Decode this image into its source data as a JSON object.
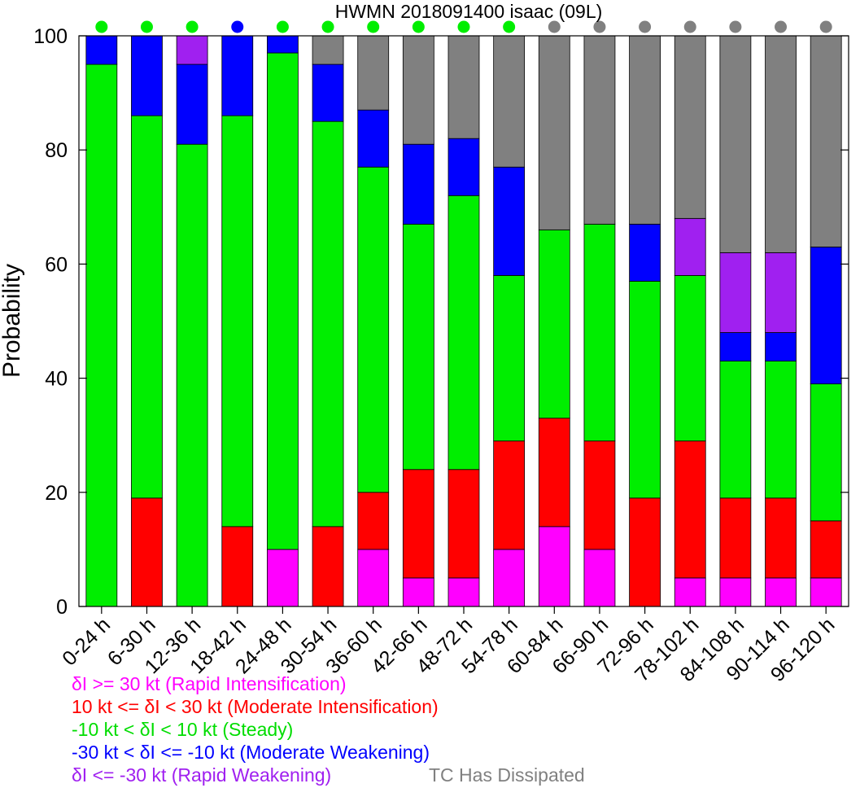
{
  "chart_data": {
    "type": "bar",
    "stacked": true,
    "title": "HWMN 2018091400 isaac (09L)",
    "xlabel": "",
    "ylabel": "Probability",
    "ylim": [
      0,
      100
    ],
    "yticks": [
      0,
      20,
      40,
      60,
      80,
      100
    ],
    "grid": false,
    "categories": [
      "0-24 h",
      "6-30 h",
      "12-36 h",
      "18-42 h",
      "24-48 h",
      "30-54 h",
      "36-60 h",
      "42-66 h",
      "48-72 h",
      "54-78 h",
      "60-84 h",
      "66-90 h",
      "72-96 h",
      "78-102 h",
      "84-108 h",
      "90-114 h",
      "96-120 h"
    ],
    "series": [
      {
        "key": "ri",
        "color": "#ff00ff",
        "values": [
          0,
          0,
          0,
          0,
          10,
          0,
          10,
          5,
          5,
          10,
          14,
          10,
          0,
          5,
          5,
          5,
          5
        ]
      },
      {
        "key": "mi",
        "color": "#ff0000",
        "values": [
          0,
          19,
          0,
          14,
          0,
          14,
          10,
          19,
          19,
          19,
          19,
          19,
          19,
          24,
          14,
          14,
          10
        ]
      },
      {
        "key": "steady",
        "color": "#00ee00",
        "values": [
          95,
          67,
          81,
          72,
          87,
          71,
          57,
          43,
          48,
          29,
          33,
          38,
          38,
          29,
          24,
          24,
          24
        ]
      },
      {
        "key": "mw",
        "color": "#0000ff",
        "values": [
          5,
          14,
          14,
          14,
          3,
          10,
          10,
          14,
          10,
          19,
          0,
          0,
          10,
          0,
          5,
          5,
          24
        ]
      },
      {
        "key": "rw",
        "color": "#a020f0",
        "values": [
          0,
          0,
          5,
          0,
          0,
          0,
          0,
          0,
          0,
          0,
          0,
          0,
          0,
          10,
          14,
          14,
          0
        ]
      },
      {
        "key": "dissipated",
        "color": "#808080",
        "values": [
          0,
          0,
          0,
          0,
          0,
          5,
          13,
          19,
          18,
          23,
          34,
          33,
          33,
          32,
          38,
          38,
          37
        ]
      }
    ],
    "indicator_dot_colors": [
      "#00ee00",
      "#00ee00",
      "#00ee00",
      "#0000ff",
      "#00ee00",
      "#00ee00",
      "#00ee00",
      "#00ee00",
      "#00ee00",
      "#00ee00",
      "#808080",
      "#808080",
      "#808080",
      "#808080",
      "#808080",
      "#808080",
      "#808080"
    ],
    "legend": {
      "placement": "bottom-left",
      "entries": [
        {
          "text": "δI >= 30 kt (Rapid Intensification)",
          "color": "#ff00ff"
        },
        {
          "text": "10 kt <= δI < 30 kt (Moderate Intensification)",
          "color": "#ff0000"
        },
        {
          "text": "-10 kt < δI < 10 kt (Steady)",
          "color": "#00dd00"
        },
        {
          "text": "-30 kt < δI <= -10 kt (Moderate Weakening)",
          "color": "#0000ff"
        },
        {
          "text": "δI <= -30 kt (Rapid Weakening)",
          "color": "#a020f0"
        }
      ],
      "extra": {
        "text": "TC Has Dissipated",
        "color": "#808080"
      }
    }
  }
}
